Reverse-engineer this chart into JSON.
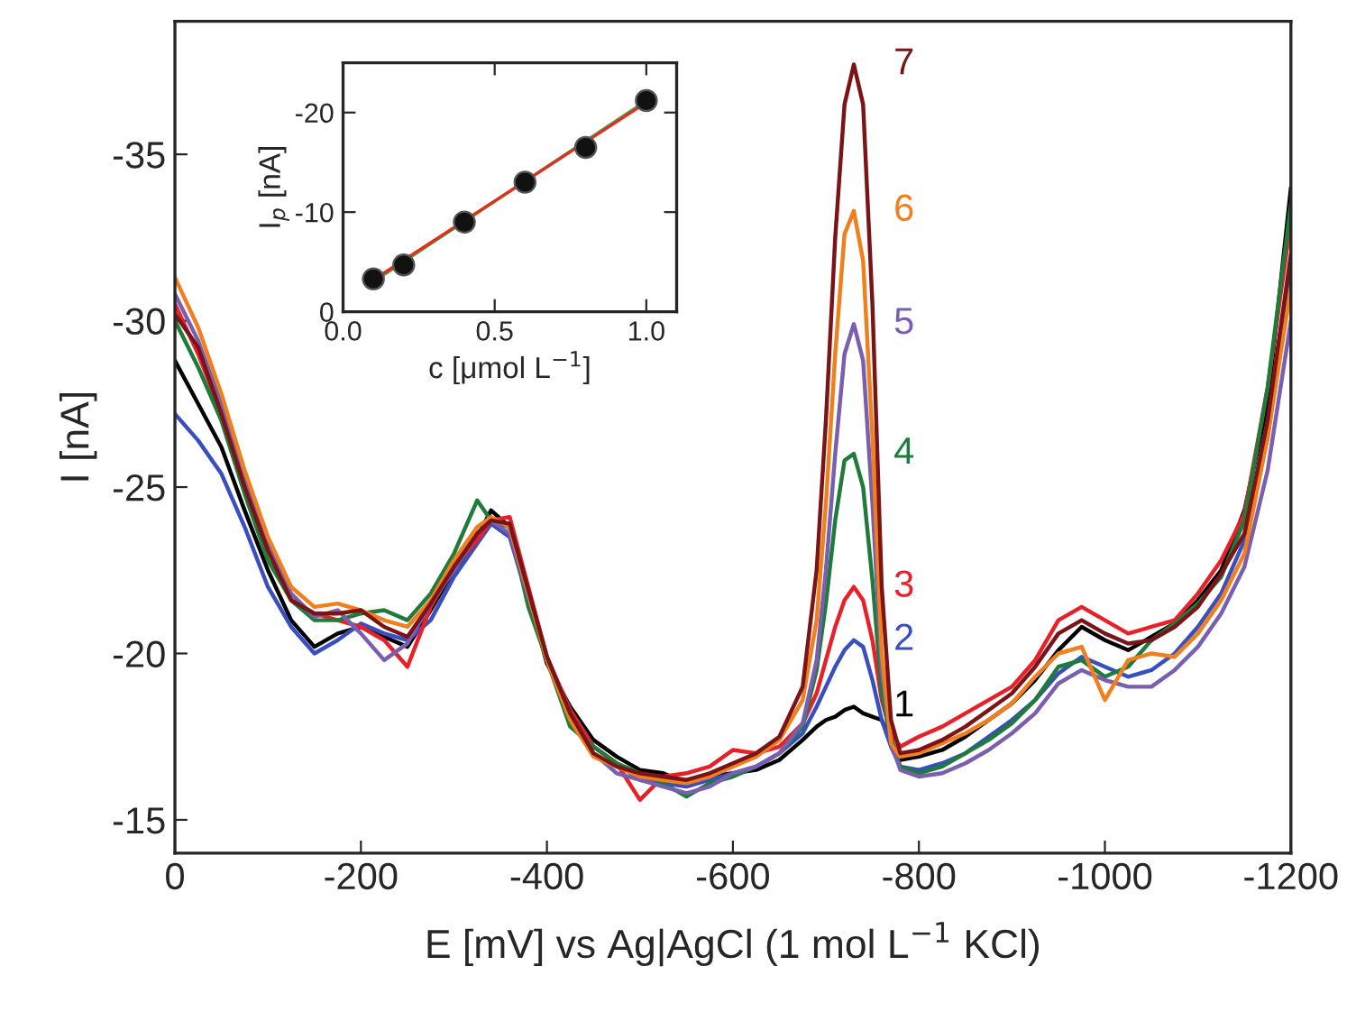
{
  "chart_data": [
    {
      "type": "line",
      "xlabel": "E [mV] vs Ag|AgCl (1 mol L$^{−1}$ KCl)",
      "ylabel": "I [nA]",
      "x": [
        0,
        -25,
        -50,
        -75,
        -100,
        -125,
        -150,
        -175,
        -200,
        -225,
        -250,
        -275,
        -300,
        -325,
        -340,
        -360,
        -380,
        -400,
        -425,
        -450,
        -475,
        -500,
        -525,
        -550,
        -575,
        -600,
        -625,
        -650,
        -675,
        -690,
        -700,
        -710,
        -720,
        -730,
        -740,
        -750,
        -760,
        -770,
        -780,
        -800,
        -825,
        -850,
        -875,
        -900,
        -925,
        -950,
        -975,
        -1000,
        -1025,
        -1050,
        -1075,
        -1100,
        -1125,
        -1150,
        -1175,
        -1200
      ],
      "xlim": [
        0,
        -1200
      ],
      "xticks": [
        0,
        -200,
        -400,
        -600,
        -800,
        -1000,
        -1200
      ],
      "ylim": [
        -14,
        -39
      ],
      "yticks": [
        -15,
        -20,
        -25,
        -30,
        -35
      ],
      "marker": "none",
      "line_style": "solid",
      "grid": false,
      "legend": false,
      "series": [
        {
          "name": "1",
          "color": "#000000",
          "values": [
            -28.8,
            -27.5,
            -26.2,
            -24.3,
            -22.5,
            -21.0,
            -20.2,
            -20.6,
            -20.8,
            -20.5,
            -20.2,
            -21.3,
            -22.5,
            -23.5,
            -24.3,
            -23.8,
            -21.8,
            -19.7,
            -18.4,
            -17.4,
            -16.9,
            -16.5,
            -16.4,
            -16.1,
            -16.3,
            -16.4,
            -16.5,
            -16.8,
            -17.4,
            -17.8,
            -18.0,
            -18.1,
            -18.3,
            -18.4,
            -18.2,
            -18.1,
            -18.0,
            -17.4,
            -16.8,
            -16.9,
            -17.1,
            -17.5,
            -18.0,
            -18.5,
            -19.2,
            -20.1,
            -20.8,
            -20.4,
            -20.1,
            -20.5,
            -20.9,
            -21.6,
            -22.5,
            -24.3,
            -27.5,
            -34.0
          ]
        },
        {
          "name": "2",
          "color": "#3a4fbf",
          "values": [
            -27.2,
            -26.4,
            -25.4,
            -23.8,
            -22.0,
            -20.8,
            -20.0,
            -20.4,
            -20.9,
            -20.6,
            -20.4,
            -21.0,
            -22.3,
            -23.3,
            -23.9,
            -23.5,
            -21.6,
            -19.8,
            -18.3,
            -17.2,
            -16.7,
            -16.2,
            -16.1,
            -16.0,
            -16.2,
            -16.4,
            -16.6,
            -17.0,
            -17.6,
            -18.4,
            -19.0,
            -19.6,
            -20.1,
            -20.4,
            -20.2,
            -19.2,
            -18.0,
            -17.2,
            -16.6,
            -16.5,
            -16.7,
            -17.0,
            -17.5,
            -18.0,
            -18.6,
            -19.4,
            -19.9,
            -19.6,
            -19.3,
            -19.5,
            -20.0,
            -20.8,
            -21.8,
            -23.4,
            -26.5,
            -31.5
          ]
        },
        {
          "name": "3",
          "color": "#e8202a",
          "values": [
            -30.5,
            -29.0,
            -27.2,
            -25.0,
            -23.2,
            -21.6,
            -21.2,
            -21.0,
            -20.8,
            -20.4,
            -19.6,
            -21.4,
            -22.6,
            -23.4,
            -24.0,
            -24.1,
            -22.0,
            -19.9,
            -18.3,
            -17.2,
            -16.7,
            -15.6,
            -16.3,
            -16.4,
            -16.6,
            -17.1,
            -17.0,
            -17.2,
            -17.9,
            -18.8,
            -19.8,
            -20.8,
            -21.6,
            -22.0,
            -21.6,
            -20.4,
            -18.6,
            -17.6,
            -17.2,
            -17.5,
            -17.8,
            -18.2,
            -18.6,
            -19.0,
            -19.8,
            -21.0,
            -21.4,
            -21.0,
            -20.6,
            -20.8,
            -21.0,
            -21.8,
            -22.8,
            -24.2,
            -28.0,
            -33.0
          ]
        },
        {
          "name": "4",
          "color": "#1e7b3a",
          "values": [
            -30.0,
            -28.6,
            -27.0,
            -24.8,
            -22.8,
            -21.6,
            -21.0,
            -21.0,
            -21.2,
            -21.3,
            -21.0,
            -21.8,
            -23.0,
            -24.6,
            -24.0,
            -23.8,
            -21.4,
            -19.8,
            -17.8,
            -17.2,
            -16.7,
            -16.4,
            -16.1,
            -15.7,
            -16.1,
            -16.3,
            -16.6,
            -17.0,
            -17.8,
            -19.5,
            -21.5,
            -24.0,
            -25.8,
            -26.0,
            -25.0,
            -22.2,
            -18.8,
            -17.4,
            -16.6,
            -16.4,
            -16.6,
            -17.0,
            -17.4,
            -17.9,
            -18.6,
            -19.6,
            -19.8,
            -19.3,
            -19.6,
            -20.4,
            -20.9,
            -21.5,
            -22.3,
            -24.0,
            -28.0,
            -33.5
          ]
        },
        {
          "name": "5",
          "color": "#7a5fb0",
          "values": [
            -30.8,
            -29.4,
            -27.5,
            -25.2,
            -23.3,
            -21.8,
            -21.1,
            -21.3,
            -20.6,
            -19.8,
            -20.3,
            -21.5,
            -22.5,
            -23.6,
            -24.0,
            -23.6,
            -21.7,
            -19.9,
            -18.2,
            -17.0,
            -16.4,
            -16.2,
            -16.0,
            -15.8,
            -16.0,
            -16.4,
            -16.6,
            -17.0,
            -17.9,
            -19.8,
            -22.5,
            -26.0,
            -29.0,
            -29.9,
            -28.8,
            -24.5,
            -19.5,
            -17.3,
            -16.5,
            -16.3,
            -16.4,
            -16.7,
            -17.1,
            -17.6,
            -18.2,
            -19.1,
            -19.5,
            -19.2,
            -19.0,
            -19.0,
            -19.5,
            -20.2,
            -21.2,
            -22.6,
            -25.5,
            -30.0
          ]
        },
        {
          "name": "6",
          "color": "#f07f1d",
          "values": [
            -31.3,
            -29.8,
            -27.8,
            -25.5,
            -23.5,
            -22.0,
            -21.4,
            -21.5,
            -21.3,
            -21.0,
            -20.8,
            -21.6,
            -22.8,
            -23.8,
            -24.1,
            -23.8,
            -21.8,
            -19.8,
            -18.0,
            -16.9,
            -16.6,
            -16.3,
            -16.2,
            -16.1,
            -16.3,
            -16.6,
            -16.9,
            -17.4,
            -18.6,
            -21.0,
            -24.5,
            -29.0,
            -32.6,
            -33.3,
            -31.8,
            -26.5,
            -20.0,
            -17.3,
            -16.9,
            -17.0,
            -17.3,
            -17.6,
            -18.0,
            -18.5,
            -19.3,
            -20.0,
            -20.2,
            -18.6,
            -19.8,
            -20.0,
            -19.9,
            -20.6,
            -21.6,
            -23.0,
            -26.5,
            -31.0
          ]
        },
        {
          "name": "7",
          "color": "#7b1416",
          "values": [
            -30.2,
            -29.2,
            -27.2,
            -25.0,
            -23.1,
            -21.6,
            -21.2,
            -21.2,
            -21.3,
            -20.8,
            -20.5,
            -21.5,
            -22.6,
            -23.6,
            -24.0,
            -23.9,
            -21.9,
            -19.9,
            -18.2,
            -17.0,
            -16.6,
            -16.4,
            -16.3,
            -16.2,
            -16.4,
            -16.7,
            -17.0,
            -17.5,
            -19.0,
            -22.5,
            -27.0,
            -32.5,
            -36.5,
            -37.7,
            -36.5,
            -30.5,
            -22.0,
            -18.0,
            -17.0,
            -17.1,
            -17.4,
            -17.8,
            -18.3,
            -18.8,
            -19.6,
            -20.6,
            -21.0,
            -20.6,
            -20.3,
            -20.4,
            -20.8,
            -21.4,
            -22.4,
            -23.6,
            -27.0,
            -32.0
          ]
        }
      ]
    },
    {
      "type": "scatter",
      "xlabel": "c [μmol L$^{−1}$]",
      "ylabel": "I$_{p}$ [nA]",
      "xlim": [
        0,
        1.1
      ],
      "xticks": [
        {
          "value": 0,
          "label": "0.0"
        },
        {
          "value": 0.5,
          "label": "0.5"
        },
        {
          "value": 1,
          "label": "1.0"
        }
      ],
      "ylim": [
        0,
        -25
      ],
      "yticks": [
        0,
        -10,
        -20
      ],
      "grid": false,
      "legend": false,
      "series": [
        {
          "type": "line",
          "color": "#3aa84a",
          "x": [
            0.1,
            1.0
          ],
          "values": [
            -3.0,
            -21.2
          ],
          "marker": "none"
        },
        {
          "type": "line",
          "color": "#e03020",
          "x": [
            0.1,
            1.0
          ],
          "values": [
            -3.2,
            -21.0
          ],
          "marker": "none"
        },
        {
          "type": "scatter",
          "color": "#111111",
          "x": [
            0.1,
            0.2,
            0.4,
            0.6,
            0.8,
            1.0
          ],
          "values": [
            -3.3,
            -4.7,
            -9.0,
            -13.0,
            -16.5,
            -21.2
          ],
          "marker": "circle"
        }
      ]
    }
  ]
}
